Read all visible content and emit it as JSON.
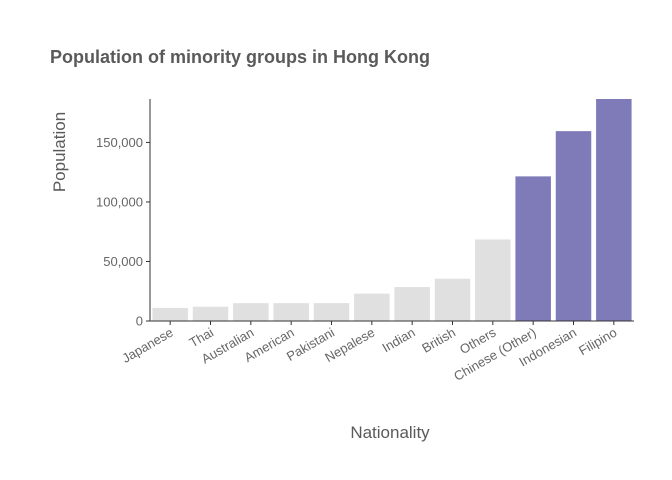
{
  "chart_data": {
    "type": "bar",
    "title": "Population of minority groups in Hong Kong",
    "xlabel": "Nationality",
    "ylabel": "Population",
    "categories": [
      "Japanese",
      "Thai",
      "Australian",
      "American",
      "Pakistani",
      "Nepalese",
      "Indian",
      "British",
      "Others",
      "Chinese (Other)",
      "Indonesian",
      "Filipino"
    ],
    "values": [
      11000,
      12000,
      15000,
      15000,
      15000,
      23000,
      28500,
      35500,
      68500,
      121500,
      159500,
      186500
    ],
    "highlighted": [
      false,
      false,
      false,
      false,
      false,
      false,
      false,
      false,
      false,
      true,
      true,
      true
    ],
    "ylim": [
      0,
      186500
    ],
    "yticks": [
      0,
      50000,
      100000,
      150000
    ],
    "ytick_labels": [
      "0",
      "50,000",
      "100,000",
      "150,000"
    ],
    "grid": false,
    "colors": {
      "base": "#e0e0e0",
      "highlight": "#7f7ab8"
    }
  }
}
